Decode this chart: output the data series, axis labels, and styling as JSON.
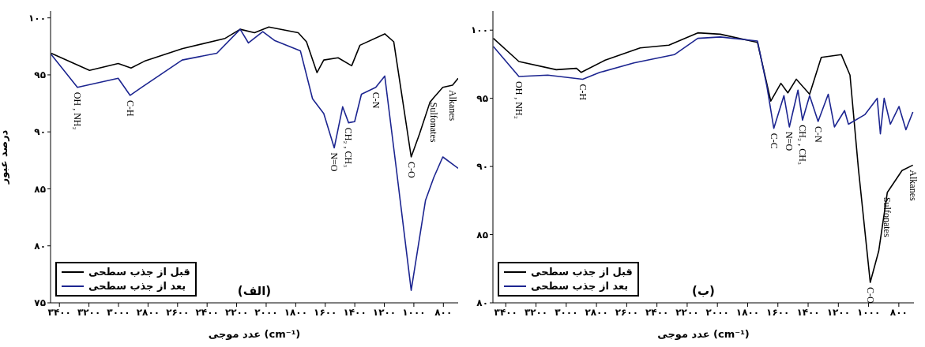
{
  "chart_data": [
    {
      "type": "line",
      "title": "(الف)",
      "xlabel": "عدد موجی (cm⁻¹)",
      "ylabel": "درصد عبور",
      "legend": "bottom left",
      "marker": "none",
      "xlim": [
        3460,
        700
      ],
      "xticks": [
        {
          "value": 3400,
          "label": "۳۴۰۰"
        },
        {
          "value": 3200,
          "label": "۳۲۰۰"
        },
        {
          "value": 3000,
          "label": "۳۰۰۰"
        },
        {
          "value": 2800,
          "label": "۲۸۰۰"
        },
        {
          "value": 2600,
          "label": "۲۶۰۰"
        },
        {
          "value": 2400,
          "label": "۲۴۰۰"
        },
        {
          "value": 2200,
          "label": "۲۲۰۰"
        },
        {
          "value": 2000,
          "label": "۲۰۰۰"
        },
        {
          "value": 1800,
          "label": "۱۸۰۰"
        },
        {
          "value": 1600,
          "label": "۱۶۰۰"
        },
        {
          "value": 1400,
          "label": "۱۴۰۰"
        },
        {
          "value": 1200,
          "label": "۱۲۰۰"
        },
        {
          "value": 1000,
          "label": "۱۰۰۰"
        },
        {
          "value": 800,
          "label": "۸۰۰"
        }
      ],
      "ylim": [
        75,
        100.6
      ],
      "yticks": [
        {
          "value": 75,
          "label": "۷۵"
        },
        {
          "value": 80,
          "label": "۸۰"
        },
        {
          "value": 85,
          "label": "۸۵"
        },
        {
          "value": 90,
          "label": "۹۰"
        },
        {
          "value": 95,
          "label": "۹۵"
        },
        {
          "value": 100,
          "label": "۱۰۰"
        }
      ],
      "series": [
        {
          "name": "قبل از جذب سطحی",
          "color": "#000000",
          "x": [
            3456,
            3196,
            3002,
            2915,
            2824,
            2569,
            2278,
            2176,
            2079,
            1982,
            1783,
            1727,
            1656,
            1610,
            1513,
            1421,
            1365,
            1197,
            1136,
            1018,
            962,
            891,
            865,
            804,
            738,
            700
          ],
          "values": [
            96.9,
            95.4,
            96.0,
            95.6,
            96.2,
            97.3,
            98.2,
            99.0,
            98.7,
            99.2,
            98.7,
            97.9,
            95.2,
            96.3,
            96.5,
            95.8,
            97.6,
            98.6,
            97.9,
            87.8,
            89.8,
            92.6,
            93.0,
            93.9,
            94.1,
            94.7
          ]
        },
        {
          "name": "بعد از جذب سطحی",
          "color": "#1c2590",
          "x": [
            3456,
            3278,
            3002,
            2921,
            2844,
            2569,
            2334,
            2176,
            2120,
            2023,
            1941,
            1768,
            1686,
            1610,
            1539,
            1482,
            1442,
            1401,
            1355,
            1258,
            1197,
            1120,
            1018,
            921,
            865,
            804,
            700
          ],
          "values": [
            96.8,
            93.9,
            94.7,
            93.2,
            93.9,
            96.3,
            96.9,
            99.0,
            97.8,
            98.8,
            98.0,
            97.1,
            92.9,
            91.6,
            88.6,
            92.2,
            90.8,
            90.9,
            93.3,
            93.9,
            94.9,
            86.9,
            76.1,
            84.0,
            86.0,
            87.8,
            86.8
          ]
        }
      ],
      "annotations": [
        {
          "text": "OH , NH₂",
          "x": 3278,
          "y": 93.9
        },
        {
          "text": "C-H",
          "x": 2921,
          "y": 93.2
        },
        {
          "text": "N=O",
          "x": 1539,
          "y": 88.6
        },
        {
          "text": "CH₂ , CH₃",
          "x": 1442,
          "y": 90.8
        },
        {
          "text": "C-N",
          "x": 1258,
          "y": 93.9
        },
        {
          "text": "C-O",
          "x": 1018,
          "y": 87.8
        },
        {
          "text": "Sulfonates",
          "x": 865,
          "y": 93.0
        },
        {
          "text": "Alkanes",
          "x": 738,
          "y": 94.1
        }
      ]
    },
    {
      "type": "line",
      "title": "(ب)",
      "xlabel": "عدد موجی (cm⁻¹)",
      "legend": "bottom left",
      "marker": "none",
      "xlim": [
        3485,
        700
      ],
      "xticks": [
        {
          "value": 3400,
          "label": "۳۴۰۰"
        },
        {
          "value": 3200,
          "label": "۳۲۰۰"
        },
        {
          "value": 3000,
          "label": "۳۰۰۰"
        },
        {
          "value": 2800,
          "label": "۲۸۰۰"
        },
        {
          "value": 2600,
          "label": "۲۶۰۰"
        },
        {
          "value": 2400,
          "label": "۲۴۰۰"
        },
        {
          "value": 2200,
          "label": "۲۲۰۰"
        },
        {
          "value": 2000,
          "label": "۲۰۰۰"
        },
        {
          "value": 1800,
          "label": "۱۸۰۰"
        },
        {
          "value": 1600,
          "label": "۱۶۰۰"
        },
        {
          "value": 1400,
          "label": "۱۴۰۰"
        },
        {
          "value": 1200,
          "label": "۱۲۰۰"
        },
        {
          "value": 1000,
          "label": "۱۰۰۰"
        },
        {
          "value": 800,
          "label": "۸۰۰"
        }
      ],
      "ylim": [
        80,
        101.4
      ],
      "yticks": [
        {
          "value": 80,
          "label": "۸۰"
        },
        {
          "value": 85,
          "label": "۸۵"
        },
        {
          "value": 90,
          "label": "۹۰"
        },
        {
          "value": 95,
          "label": "۹۵"
        },
        {
          "value": 100,
          "label": "۱۰۰"
        }
      ],
      "series": [
        {
          "name": "قبل از جذب سطحی",
          "color": "#000000",
          "x": [
            3482,
            3313,
            3066,
            2932,
            2901,
            2742,
            2511,
            2321,
            2130,
            1981,
            1735,
            1647,
            1580,
            1534,
            1478,
            1390,
            1313,
            1180,
            1123,
            1067,
            989,
            933,
            876,
            779,
            707
          ],
          "values": [
            99.4,
            97.7,
            97.1,
            97.2,
            96.9,
            97.8,
            98.7,
            98.9,
            99.8,
            99.7,
            99.1,
            94.8,
            96.1,
            95.4,
            96.4,
            95.3,
            98.0,
            98.2,
            96.7,
            89.8,
            81.5,
            83.8,
            88.1,
            89.7,
            90.1
          ]
        },
        {
          "name": "بعد از جذب سطحی",
          "color": "#1c2590",
          "x": [
            3482,
            3313,
            3122,
            2891,
            2778,
            2552,
            2285,
            2130,
            1981,
            1735,
            1673,
            1627,
            1560,
            1524,
            1467,
            1437,
            1390,
            1334,
            1267,
            1226,
            1159,
            1133,
            1025,
            943,
            922,
            897,
            856,
            799,
            753,
            707
          ],
          "values": [
            98.8,
            96.6,
            96.7,
            96.4,
            96.9,
            97.6,
            98.2,
            99.4,
            99.5,
            99.2,
            95.9,
            92.8,
            95.2,
            92.9,
            95.6,
            93.4,
            95.2,
            93.3,
            95.3,
            92.9,
            94.1,
            93.1,
            93.8,
            95.0,
            92.4,
            95.0,
            93.1,
            94.4,
            92.7,
            94.0
          ]
        }
      ],
      "annotations": [
        {
          "text": "OH , NH₂",
          "x": 3313,
          "y": 96.6
        },
        {
          "text": "C-H",
          "x": 2891,
          "y": 96.4
        },
        {
          "text": "C-C",
          "x": 1627,
          "y": 92.8
        },
        {
          "text": "N=O",
          "x": 1524,
          "y": 92.9
        },
        {
          "text": "CH₂ , CH₃",
          "x": 1437,
          "y": 93.4
        },
        {
          "text": "C-N",
          "x": 1334,
          "y": 93.3
        },
        {
          "text": "C-O",
          "x": 989,
          "y": 81.5
        },
        {
          "text": "Sulfonates",
          "x": 876,
          "y": 88.1
        },
        {
          "text": "Alkanes",
          "x": 707,
          "y": 90.1
        }
      ]
    }
  ]
}
